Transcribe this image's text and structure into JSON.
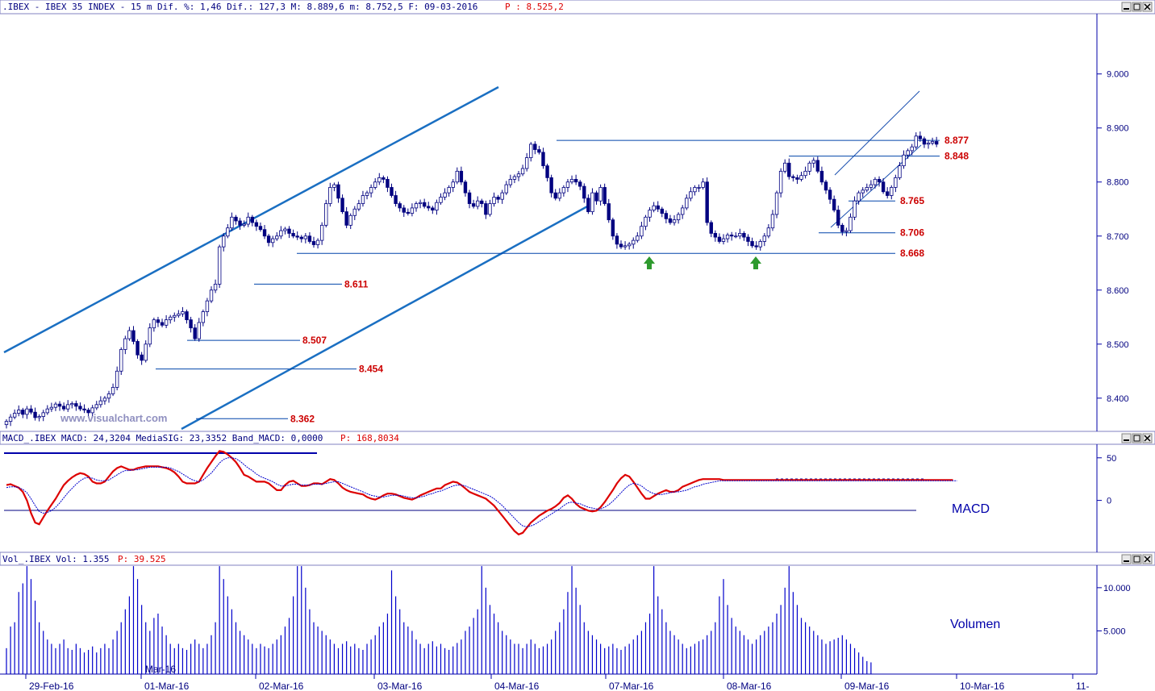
{
  "header": {
    "price": ".IBEX - IBEX 35 INDEX -   15 m Dif. %: 1,46 Dif.: 127,3 M: 8.889,6 m: 8.752,5 F: 09-03-2016",
    "price_last": "P : 8.525,2",
    "macd": "MACD_.IBEX MACD: 24,3204 MediaSIG: 23,3352 Band_MACD: 0,0000",
    "macd_last": "P: 168,8034",
    "vol": "Vol_.IBEX Vol: 1.355",
    "vol_last": "P: 39.525"
  },
  "watermark": "www.visualchart.com",
  "pane_labels": {
    "macd": "MACD",
    "volume": "Volumen"
  },
  "date_ticks": [
    "29-Feb-16",
    "01-Mar-16",
    "02-Mar-16",
    "03-Mar-16",
    "04-Mar-16",
    "07-Mar-16",
    "08-Mar-16",
    "09-Mar-16",
    "10-Mar-16",
    "11-"
  ],
  "volume_month_label": "Mar-16",
  "colors": {
    "axis": "#000080",
    "levels": "#cc0000",
    "trend": "#1a6fc2",
    "macd": "#dd0000",
    "signal": "#0000cc",
    "volume": "#0000cc",
    "arrow": "#2e9a2e"
  },
  "chart_data": [
    {
      "type": "candlestick",
      "title": "IBEX 35 INDEX 15 m",
      "y_ticks": [
        "9.000",
        "8.900",
        "8.800",
        "8.700",
        "8.600",
        "8.500",
        "8.400"
      ],
      "y_tick_values": [
        9000,
        8900,
        8800,
        8700,
        8600,
        8500,
        8400
      ],
      "ylim": [
        8340,
        9110
      ],
      "levels": [
        {
          "label": "8.877",
          "value": 8877
        },
        {
          "label": "8.848",
          "value": 8848
        },
        {
          "label": "8.765",
          "value": 8765
        },
        {
          "label": "8.706",
          "value": 8706
        },
        {
          "label": "8.668",
          "value": 8668
        },
        {
          "label": "8.611",
          "value": 8611
        },
        {
          "label": "8.507",
          "value": 8507
        },
        {
          "label": "8.454",
          "value": 8454
        },
        {
          "label": "8.362",
          "value": 8362
        }
      ],
      "closes": [
        8357,
        8365,
        8372,
        8378,
        8370,
        8380,
        8374,
        8364,
        8366,
        8373,
        8380,
        8383,
        8389,
        8385,
        8380,
        8388,
        8390,
        8385,
        8380,
        8378,
        8373,
        8382,
        8388,
        8395,
        8400,
        8408,
        8420,
        8450,
        8490,
        8510,
        8525,
        8505,
        8480,
        8470,
        8500,
        8530,
        8545,
        8540,
        8535,
        8545,
        8550,
        8553,
        8556,
        8560,
        8545,
        8530,
        8510,
        8540,
        8560,
        8580,
        8600,
        8611,
        8680,
        8700,
        8715,
        8735,
        8728,
        8720,
        8722,
        8735,
        8725,
        8718,
        8712,
        8700,
        8688,
        8695,
        8700,
        8710,
        8713,
        8705,
        8700,
        8698,
        8695,
        8700,
        8690,
        8684,
        8692,
        8720,
        8760,
        8790,
        8795,
        8770,
        8745,
        8720,
        8738,
        8750,
        8760,
        8775,
        8780,
        8790,
        8800,
        8808,
        8805,
        8790,
        8775,
        8760,
        8752,
        8744,
        8742,
        8752,
        8760,
        8762,
        8755,
        8752,
        8748,
        8762,
        8772,
        8780,
        8790,
        8800,
        8820,
        8800,
        8780,
        8760,
        8755,
        8765,
        8760,
        8740,
        8760,
        8772,
        8768,
        8780,
        8795,
        8805,
        8810,
        8815,
        8825,
        8845,
        8870,
        8860,
        8855,
        8830,
        8808,
        8780,
        8770,
        8780,
        8790,
        8800,
        8805,
        8800,
        8792,
        8770,
        8745,
        8780,
        8765,
        8790,
        8760,
        8730,
        8700,
        8685,
        8680,
        8682,
        8685,
        8692,
        8700,
        8718,
        8735,
        8748,
        8756,
        8750,
        8742,
        8732,
        8725,
        8730,
        8740,
        8752,
        8770,
        8782,
        8790,
        8790,
        8800,
        8725,
        8705,
        8698,
        8690,
        8695,
        8702,
        8700,
        8700,
        8705,
        8698,
        8690,
        8682,
        8680,
        8690,
        8700,
        8715,
        8740,
        8780,
        8820,
        8835,
        8810,
        8808,
        8805,
        8812,
        8820,
        8835,
        8840,
        8820,
        8800,
        8785,
        8768,
        8748,
        8720,
        8708,
        8710,
        8735,
        8765,
        8780,
        8785,
        8790,
        8795,
        8805,
        8800,
        8782,
        8775,
        8790,
        8808,
        8830,
        8850,
        8858,
        8865,
        8885,
        8880,
        8870,
        8872,
        8875,
        8870
      ]
    },
    {
      "type": "line",
      "title": "MACD_.IBEX",
      "y_ticks": [
        "50",
        "0"
      ],
      "y_tick_values": [
        50,
        0
      ],
      "ylim": [
        -60,
        64
      ],
      "series": [
        {
          "name": "MACD",
          "values": [
            18,
            19,
            17,
            15,
            10,
            0,
            -15,
            -26,
            -28,
            -20,
            -12,
            -5,
            2,
            10,
            18,
            23,
            27,
            30,
            32,
            31,
            28,
            22,
            20,
            20,
            22,
            28,
            34,
            38,
            40,
            38,
            36,
            36,
            38,
            39,
            40,
            40,
            40,
            40,
            39,
            38,
            36,
            33,
            28,
            22,
            20,
            20,
            20,
            22,
            30,
            38,
            45,
            52,
            58,
            57,
            54,
            50,
            45,
            38,
            30,
            28,
            25,
            22,
            22,
            22,
            20,
            16,
            12,
            12,
            18,
            22,
            23,
            20,
            17,
            17,
            18,
            20,
            20,
            19,
            22,
            25,
            24,
            20,
            15,
            12,
            10,
            9,
            8,
            7,
            4,
            2,
            1,
            3,
            6,
            8,
            8,
            7,
            5,
            3,
            2,
            1,
            3,
            6,
            8,
            10,
            12,
            14,
            14,
            18,
            20,
            22,
            21,
            18,
            14,
            10,
            8,
            6,
            4,
            2,
            -2,
            -6,
            -12,
            -18,
            -24,
            -30,
            -36,
            -40,
            -38,
            -32,
            -26,
            -22,
            -18,
            -15,
            -12,
            -10,
            -7,
            -3,
            3,
            6,
            2,
            -4,
            -8,
            -10,
            -12,
            -13,
            -12,
            -8,
            -2,
            5,
            12,
            20,
            26,
            30,
            28,
            22,
            15,
            8,
            2,
            2,
            5,
            8,
            10,
            12,
            10,
            10,
            12,
            16,
            18,
            20,
            22,
            24,
            25,
            25,
            25,
            25,
            25,
            24,
            24,
            24,
            24,
            24,
            24,
            24,
            24,
            24,
            24,
            24,
            24,
            24,
            24,
            24,
            24,
            24,
            24,
            24,
            24,
            24,
            24,
            24,
            24,
            24,
            24,
            24,
            24,
            24,
            24,
            24,
            24,
            24,
            24,
            24,
            24,
            24,
            24,
            24,
            24,
            24,
            24,
            24,
            24,
            24,
            24,
            24,
            24,
            24,
            24,
            24,
            24,
            24,
            24,
            24,
            24,
            24
          ]
        },
        {
          "name": "MediaSIG",
          "values": [
            15,
            16,
            16,
            15,
            13,
            9,
            2,
            -6,
            -13,
            -15,
            -14,
            -12,
            -8,
            -3,
            3,
            9,
            14,
            19,
            23,
            26,
            27,
            26,
            24,
            23,
            23,
            24,
            27,
            30,
            33,
            35,
            35,
            36,
            36,
            37,
            38,
            39,
            39,
            39,
            39,
            39,
            38,
            36,
            34,
            31,
            28,
            25,
            23,
            22,
            24,
            28,
            32,
            38,
            44,
            48,
            50,
            50,
            49,
            46,
            42,
            38,
            35,
            31,
            28,
            26,
            24,
            22,
            19,
            17,
            17,
            18,
            19,
            19,
            18,
            18,
            18,
            19,
            19,
            19,
            20,
            21,
            22,
            22,
            20,
            18,
            16,
            14,
            12,
            10,
            8,
            6,
            5,
            4,
            4,
            5,
            6,
            6,
            6,
            5,
            4,
            3,
            3,
            4,
            5,
            7,
            8,
            10,
            11,
            13,
            15,
            17,
            18,
            18,
            17,
            15,
            13,
            11,
            9,
            7,
            5,
            2,
            -2,
            -6,
            -11,
            -16,
            -21,
            -26,
            -30,
            -31,
            -30,
            -28,
            -25,
            -22,
            -19,
            -16,
            -13,
            -10,
            -6,
            -3,
            -2,
            -3,
            -4,
            -6,
            -8,
            -9,
            -10,
            -10,
            -8,
            -5,
            -1,
            4,
            9,
            14,
            18,
            20,
            19,
            17,
            13,
            10,
            8,
            7,
            7,
            8,
            9,
            10,
            10,
            11,
            12,
            14,
            16,
            17,
            19,
            20,
            21,
            22,
            23,
            23,
            23,
            23,
            23,
            23,
            23,
            23,
            23,
            23,
            23,
            23,
            23,
            23,
            23,
            23,
            23,
            23,
            23,
            23,
            23,
            23,
            23,
            23,
            23,
            23,
            23,
            23,
            23,
            23,
            23,
            23,
            23,
            23,
            23,
            23,
            23,
            23,
            23,
            23,
            23,
            23,
            23,
            23,
            23,
            23,
            23,
            23,
            23,
            23,
            23,
            23,
            23,
            23,
            23,
            23,
            23,
            23,
            23
          ]
        }
      ]
    },
    {
      "type": "bar",
      "title": "Vol_.IBEX",
      "y_ticks": [
        "10.000",
        "5.000"
      ],
      "y_tick_values": [
        10000,
        5000
      ],
      "ylim": [
        0,
        12600
      ],
      "values": [
        3000,
        5500,
        6000,
        9500,
        10500,
        12500,
        11000,
        8500,
        6000,
        5000,
        4000,
        3500,
        3000,
        3500,
        4000,
        3000,
        2800,
        3500,
        3000,
        2500,
        2800,
        3200,
        2500,
        3000,
        3500,
        3000,
        4000,
        5000,
        6000,
        7500,
        9000,
        12500,
        11000,
        8000,
        6000,
        5000,
        6500,
        7000,
        5500,
        4500,
        3500,
        3000,
        3500,
        3000,
        2800,
        3500,
        4000,
        3500,
        3000,
        3500,
        4500,
        6000,
        12500,
        11000,
        9000,
        7500,
        6000,
        5000,
        4500,
        4000,
        3500,
        3000,
        3500,
        3200,
        3000,
        3500,
        4000,
        4500,
        5500,
        6500,
        9000,
        12500,
        12500,
        10000,
        7500,
        6000,
        5500,
        5000,
        4500,
        4000,
        3500,
        3000,
        3500,
        3800,
        3200,
        3500,
        3000,
        2800,
        3500,
        4000,
        4500,
        5500,
        6000,
        7000,
        12000,
        9000,
        7500,
        6000,
        5500,
        5000,
        4000,
        3500,
        3000,
        3500,
        3800,
        3200,
        3500,
        3000,
        2800,
        3200,
        3600,
        4000,
        5000,
        5500,
        6500,
        7500,
        12500,
        10000,
        8000,
        7000,
        6000,
        5000,
        4500,
        4000,
        3500,
        3500,
        3000,
        3500,
        4000,
        3500,
        3000,
        3200,
        3500,
        4000,
        5000,
        6000,
        7500,
        9500,
        12500,
        10000,
        8000,
        6000,
        5000,
        4500,
        4000,
        3500,
        3000,
        3200,
        3500,
        3000,
        2800,
        3200,
        3500,
        4000,
        4500,
        5000,
        6000,
        7000,
        12500,
        9000,
        7500,
        6000,
        5000,
        4500,
        4000,
        3500,
        3000,
        3200,
        3500,
        3800,
        4000,
        4500,
        5000,
        6000,
        9000,
        11000,
        8000,
        6500,
        5500,
        5000,
        4500,
        4000,
        3500,
        4000,
        4500,
        5000,
        5500,
        6000,
        7000,
        8000,
        10000,
        12500,
        9500,
        8000,
        6500,
        6000,
        5500,
        5000,
        4500,
        4000,
        3500,
        3800,
        4000,
        4200,
        4500,
        4000,
        3500,
        3000,
        2500,
        2000,
        1500,
        1355
      ]
    }
  ]
}
